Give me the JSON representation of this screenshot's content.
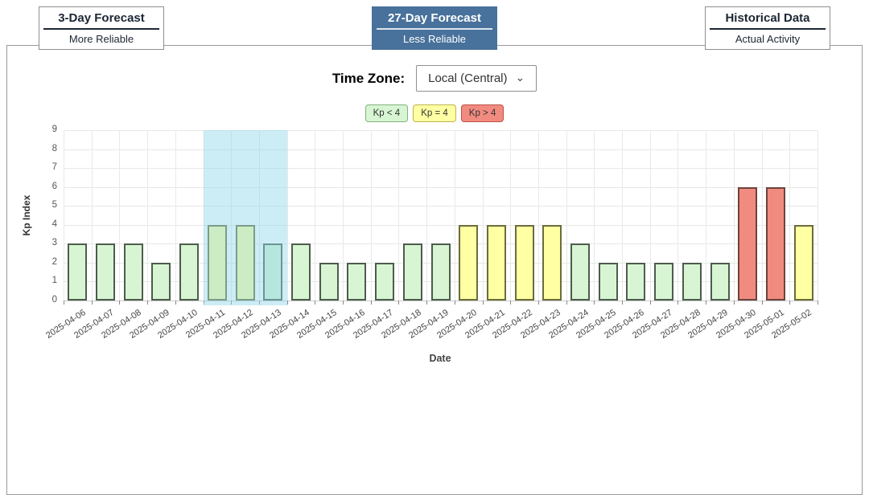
{
  "tabs": [
    {
      "title": "3-Day Forecast",
      "subtitle": "More Reliable",
      "active": false
    },
    {
      "title": "27-Day Forecast",
      "subtitle": "Less Reliable",
      "active": true
    },
    {
      "title": "Historical Data",
      "subtitle": "Actual Activity",
      "active": false
    }
  ],
  "controls": {
    "timezone_label": "Time Zone:",
    "timezone_value": "Local (Central)",
    "chevron_icon": "⌄"
  },
  "legend": [
    {
      "label": "Kp < 4",
      "fill": "#d7f5d3",
      "border": "#84b07e"
    },
    {
      "label": "Kp = 4",
      "fill": "#ffffa3",
      "border": "#c2b24b"
    },
    {
      "label": "Kp > 4",
      "fill": "#f18b80",
      "border": "#bf4f46"
    }
  ],
  "accent": {
    "active_tab_bg": "#48719b",
    "highlight_band": "rgba(143,216,234,0.45)"
  },
  "chart_data": {
    "type": "bar",
    "title": "",
    "xlabel": "Date",
    "ylabel": "Kp Index",
    "ylim": [
      0,
      9
    ],
    "grid": true,
    "legend_position": "top",
    "categories": [
      "2025-04-06",
      "2025-04-07",
      "2025-04-08",
      "2025-04-09",
      "2025-04-10",
      "2025-04-11",
      "2025-04-12",
      "2025-04-13",
      "2025-04-14",
      "2025-04-15",
      "2025-04-16",
      "2025-04-17",
      "2025-04-18",
      "2025-04-19",
      "2025-04-20",
      "2025-04-21",
      "2025-04-22",
      "2025-04-23",
      "2025-04-24",
      "2025-04-25",
      "2025-04-26",
      "2025-04-27",
      "2025-04-28",
      "2025-04-29",
      "2025-04-30",
      "2025-05-01",
      "2025-05-02"
    ],
    "values": [
      3,
      3,
      3,
      2,
      3,
      4,
      4,
      3,
      3,
      2,
      2,
      2,
      3,
      3,
      4,
      4,
      4,
      4,
      3,
      2,
      2,
      2,
      2,
      2,
      6,
      6,
      4
    ],
    "highlight_range": [
      "2025-04-11",
      "2025-04-13"
    ],
    "bar_styles": {
      "kp_lt_4": {
        "fill": "#d7f5d3",
        "border": "#4d5c4d"
      },
      "kp_eq_4": {
        "fill": "#ffffa3",
        "border": "#6c6c3a"
      },
      "kp_gt_4": {
        "fill": "#f18b80",
        "border": "#6d423c"
      }
    }
  }
}
